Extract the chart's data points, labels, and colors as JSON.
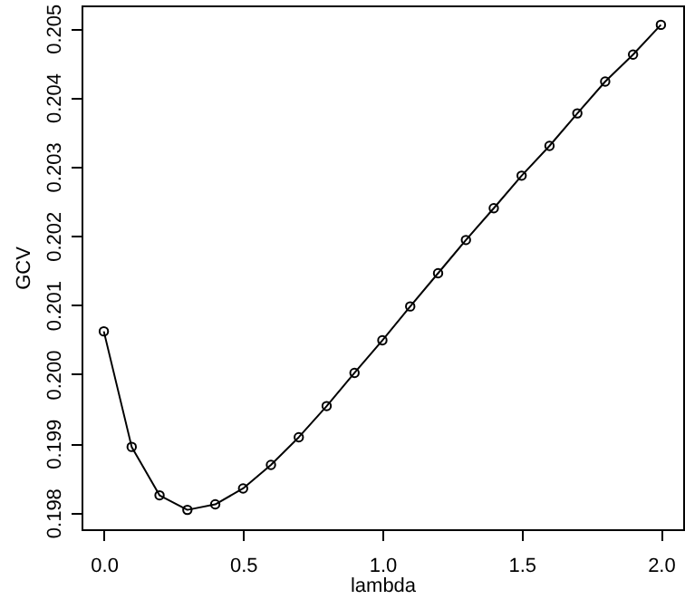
{
  "chart_data": {
    "type": "line",
    "xlabel": "lambda",
    "ylabel": "GCV",
    "x": [
      0,
      0.1,
      0.2,
      0.3,
      0.4,
      0.5,
      0.6,
      0.7,
      0.8,
      0.9,
      1.0,
      1.1,
      1.2,
      1.3,
      1.4,
      1.5,
      1.6,
      1.7,
      1.8,
      1.9,
      2.0
    ],
    "series": [
      {
        "color": "#000000",
        "values": [
          0.20062,
          0.19895,
          0.19825,
          0.19804,
          0.19812,
          0.19835,
          0.19869,
          0.19909,
          0.19954,
          0.20002,
          0.20049,
          0.20098,
          0.20146,
          0.20194,
          0.2024,
          0.20287,
          0.2033,
          0.20377,
          0.20423,
          0.20462,
          0.20505
        ]
      }
    ],
    "xlim": [
      -0.08,
      2.08
    ],
    "ylim": [
      0.19776,
      0.20533
    ],
    "xticks": [
      {
        "value": 0,
        "label": "0.0"
      },
      0.5,
      {
        "value": 1,
        "label": "1.0"
      },
      1.5,
      {
        "value": 2,
        "label": "2.0"
      }
    ],
    "yticks": [
      0.198,
      0.199,
      {
        "value": 0.2,
        "label": "0.200"
      },
      0.201,
      0.202,
      0.203,
      0.204,
      0.205
    ],
    "marker": "circle",
    "line_style": "solid"
  }
}
